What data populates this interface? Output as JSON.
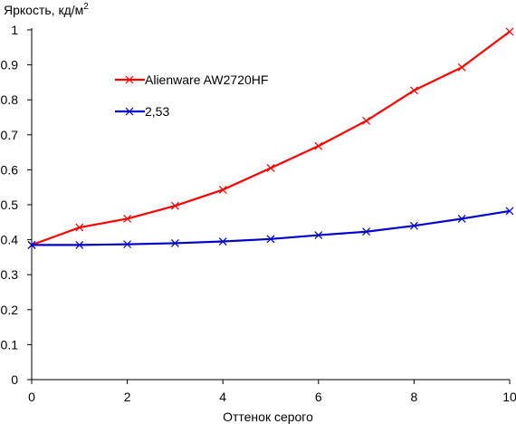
{
  "chart_data": {
    "type": "line",
    "ylabel": "Яркость, кд/м",
    "ylabel_superscript": "2",
    "xlabel": "Оттенок серого",
    "xlim": [
      0,
      10
    ],
    "ylim": [
      0,
      1
    ],
    "x_ticks": [
      "0",
      "2",
      "4",
      "6",
      "8",
      "10"
    ],
    "y_ticks": [
      "0",
      "0.1",
      "0.2",
      "0.3",
      "0.4",
      "0.5",
      "0.6",
      "0.7",
      "0.8",
      "0.9",
      "1"
    ],
    "grid": false,
    "legend_placement": "top-left inside plot",
    "series": [
      {
        "name": "Alienware AW2720HF",
        "color": "#ff0000",
        "marker": "x",
        "x": [
          0,
          1,
          2,
          3,
          4,
          5,
          6,
          7,
          8,
          9,
          10
        ],
        "values": [
          0.385,
          0.435,
          0.46,
          0.497,
          0.543,
          0.605,
          0.668,
          0.74,
          0.827,
          0.893,
          0.995
        ]
      },
      {
        "name": "2,53",
        "color": "#0000cc",
        "marker": "x",
        "x": [
          0,
          1,
          2,
          3,
          4,
          5,
          6,
          7,
          8,
          9,
          10
        ],
        "values": [
          0.385,
          0.385,
          0.387,
          0.39,
          0.395,
          0.402,
          0.413,
          0.423,
          0.44,
          0.46,
          0.482
        ]
      }
    ]
  }
}
